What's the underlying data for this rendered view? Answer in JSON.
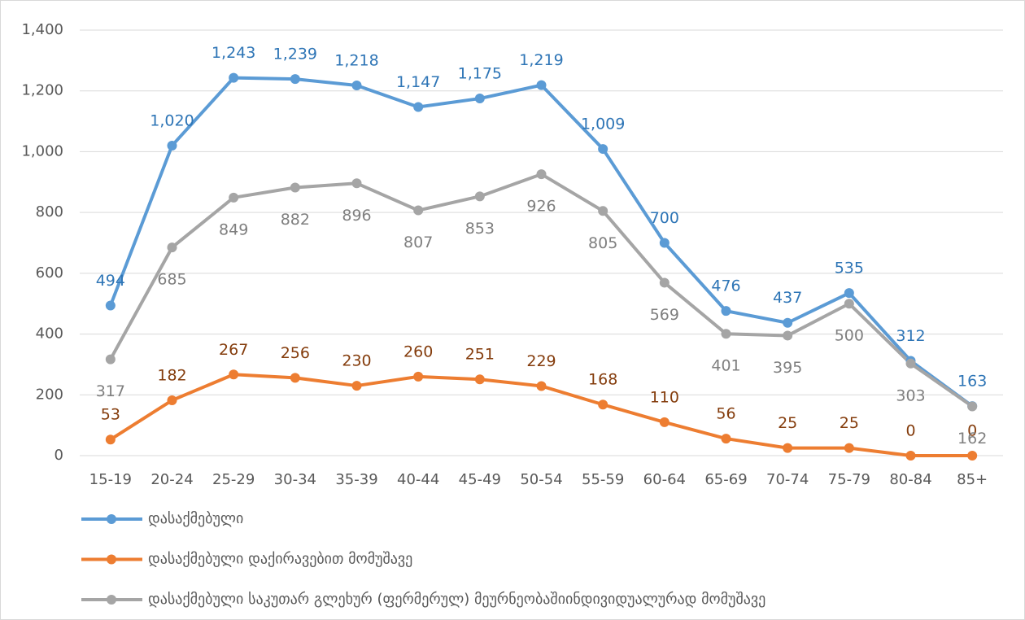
{
  "chart_data": {
    "type": "line",
    "categories": [
      "15-19",
      "20-24",
      "25-29",
      "30-34",
      "35-39",
      "40-44",
      "45-49",
      "50-54",
      "55-59",
      "60-64",
      "65-69",
      "70-74",
      "75-79",
      "80-84",
      "85+"
    ],
    "series": [
      {
        "name": "დასაქმებული",
        "color": "#5b9bd5",
        "label_color": "#2e75b6",
        "values": [
          494,
          1020,
          1243,
          1239,
          1218,
          1147,
          1175,
          1219,
          1009,
          700,
          476,
          437,
          535,
          312,
          163
        ],
        "value_labels": [
          "494",
          "1,020",
          "1,243",
          "1,239",
          "1,218",
          "1,147",
          "1,175",
          "1,219",
          "1,009",
          "700",
          "476",
          "437",
          "535",
          "312",
          "163"
        ]
      },
      {
        "name": "დასაქმებული დაქირავებით მომუშავე",
        "color": "#ed7d31",
        "label_color": "#843c0c",
        "values": [
          53,
          182,
          267,
          256,
          230,
          260,
          251,
          229,
          168,
          110,
          56,
          25,
          25,
          0,
          0
        ]
      },
      {
        "name": "დასაქმებული საკუთარ გლეხურ (ფერმერულ) მეურნეობაშიინდივიდუალურად მომუშავე",
        "color": "#a5a5a5",
        "label_color": "#7f7f7f",
        "values": [
          317,
          685,
          849,
          882,
          896,
          807,
          853,
          926,
          805,
          569,
          401,
          395,
          500,
          303,
          162
        ]
      }
    ],
    "ylim": [
      0,
      1400
    ],
    "yticks": [
      0,
      200,
      400,
      600,
      800,
      {
        "value": 1000,
        "label": "1,000"
      },
      {
        "value": 1200,
        "label": "1,200"
      },
      {
        "value": 1400,
        "label": "1,400"
      }
    ],
    "grid": true,
    "legend": "bottom"
  }
}
